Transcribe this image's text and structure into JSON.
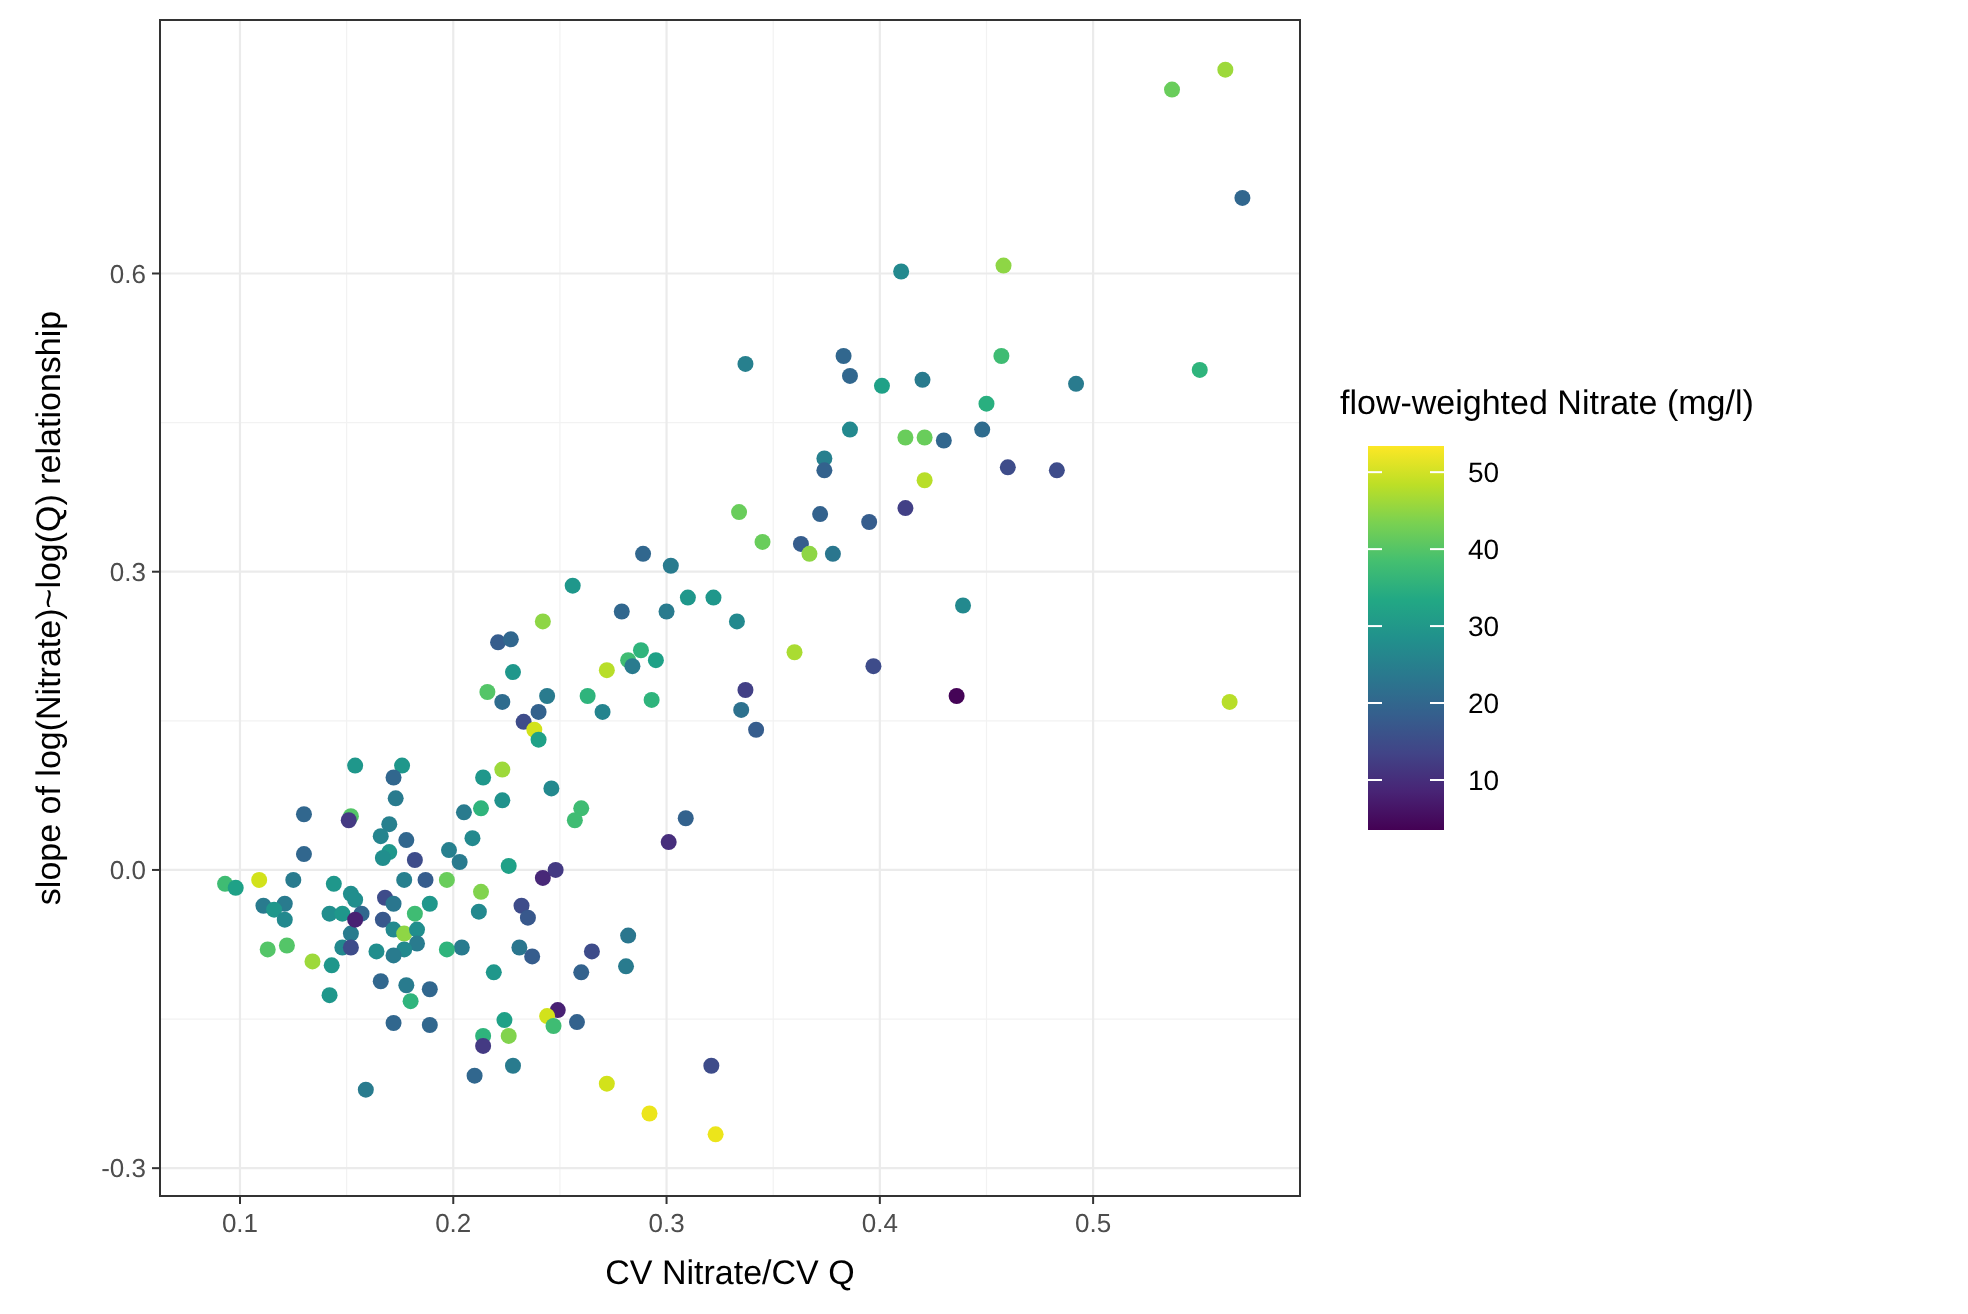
{
  "chart_data": {
    "type": "scatter",
    "xlabel": "CV Nitrate/CV Q",
    "ylabel": "slope of log(Nitrate)~log(Q) relationship",
    "clabel": "flow-weighted Nitrate (mg/l)",
    "xlim": [
      0.0625,
      0.597
    ],
    "ylim": [
      -0.328,
      0.855
    ],
    "xticks": [
      0.1,
      0.2,
      0.3,
      0.4,
      0.5
    ],
    "yticks": [
      -0.3,
      {
        "value": 0,
        "label": "0.0"
      },
      0.3,
      0.6
    ],
    "clim": [
      3.5,
      53.4
    ],
    "cticks": [
      10,
      20,
      30,
      40,
      50
    ],
    "grid": true,
    "marker": "circle",
    "series": [
      {
        "x": [
          0.537,
          0.562,
          0.57,
          0.41,
          0.458,
          0.337,
          0.383,
          0.386,
          0.401,
          0.42,
          0.457,
          0.55,
          0.492,
          0.45,
          0.386,
          0.412,
          0.421,
          0.43,
          0.448,
          0.374,
          0.374,
          0.46,
          0.483,
          0.421,
          0.334,
          0.372,
          0.395,
          0.412,
          0.345,
          0.363,
          0.367,
          0.378,
          0.302,
          0.3,
          0.31,
          0.322,
          0.333,
          0.439,
          0.36,
          0.397,
          0.337,
          0.335,
          0.436,
          0.564,
          0.256,
          0.279,
          0.289,
          0.242,
          0.221,
          0.227,
          0.228,
          0.216,
          0.223,
          0.244,
          0.233,
          0.24,
          0.238,
          0.24,
          0.263,
          0.27,
          0.272,
          0.282,
          0.288,
          0.284,
          0.295,
          0.293,
          0.342,
          0.223,
          0.214,
          0.223,
          0.213,
          0.205,
          0.246,
          0.26,
          0.257,
          0.209,
          0.203,
          0.226,
          0.309,
          0.301,
          0.248,
          0.242,
          0.213,
          0.212,
          0.232,
          0.235,
          0.204,
          0.231,
          0.237,
          0.219,
          0.265,
          0.282,
          0.26,
          0.281,
          0.249,
          0.244,
          0.247,
          0.258,
          0.224,
          0.214,
          0.226,
          0.214,
          0.21,
          0.228,
          0.272,
          0.292,
          0.323,
          0.321,
          0.154,
          0.176,
          0.172,
          0.173,
          0.13,
          0.152,
          0.151,
          0.17,
          0.166,
          0.178,
          0.17,
          0.167,
          0.182,
          0.13,
          0.198,
          0.197,
          0.187,
          0.177,
          0.125,
          0.109,
          0.093,
          0.098,
          0.144,
          0.152,
          0.154,
          0.168,
          0.172,
          0.189,
          0.111,
          0.121,
          0.116,
          0.121,
          0.142,
          0.148,
          0.157,
          0.182,
          0.167,
          0.152,
          0.154,
          0.172,
          0.177,
          0.183,
          0.183,
          0.177,
          0.172,
          0.164,
          0.148,
          0.152,
          0.113,
          0.122,
          0.197,
          0.134,
          0.143,
          0.166,
          0.178,
          0.189,
          0.18,
          0.142,
          0.172,
          0.189,
          0.159
        ],
        "values": [
          0.785,
          0.805,
          0.676,
          0.602,
          0.608,
          0.509,
          0.517,
          0.497,
          0.487,
          0.493,
          0.517,
          0.503,
          0.489,
          0.469,
          0.443,
          0.435,
          0.435,
          0.432,
          0.443,
          0.414,
          0.402,
          0.405,
          0.402,
          0.392,
          0.36,
          0.358,
          0.35,
          0.364,
          0.33,
          0.328,
          0.318,
          0.318,
          0.306,
          0.26,
          0.274,
          0.274,
          0.25,
          0.266,
          0.219,
          0.205,
          0.181,
          0.161,
          0.175,
          0.169,
          0.286,
          0.26,
          0.318,
          0.25,
          0.229,
          0.232,
          0.199,
          0.179,
          0.169,
          0.175,
          0.149,
          0.159,
          0.141,
          0.131,
          0.175,
          0.159,
          0.201,
          0.211,
          0.221,
          0.205,
          0.211,
          0.171,
          0.141,
          0.101,
          0.093,
          0.07,
          0.062,
          0.058,
          0.082,
          0.062,
          0.05,
          0.032,
          0.008,
          0.004,
          0.052,
          0.028,
          0.0,
          -0.008,
          -0.022,
          -0.042,
          -0.036,
          -0.048,
          -0.078,
          -0.078,
          -0.087,
          -0.103,
          -0.082,
          -0.066,
          -0.103,
          -0.097,
          -0.141,
          -0.147,
          -0.157,
          -0.153,
          -0.151,
          -0.167,
          -0.167,
          -0.177,
          -0.207,
          -0.197,
          -0.215,
          -0.245,
          -0.266,
          -0.197,
          0.105,
          0.105,
          0.093,
          0.072,
          0.056,
          0.054,
          0.05,
          0.046,
          0.034,
          0.03,
          0.018,
          0.012,
          0.01,
          0.016,
          0.02,
          -0.01,
          -0.01,
          -0.01,
          -0.01,
          -0.01,
          -0.014,
          -0.018,
          -0.014,
          -0.024,
          -0.03,
          -0.028,
          -0.034,
          -0.034,
          -0.036,
          -0.034,
          -0.04,
          -0.05,
          -0.044,
          -0.044,
          -0.044,
          -0.044,
          -0.05,
          -0.064,
          -0.05,
          -0.06,
          -0.064,
          -0.06,
          -0.074,
          -0.08,
          -0.086,
          -0.082,
          -0.078,
          -0.078,
          -0.08,
          -0.076,
          -0.08,
          -0.092,
          -0.096,
          -0.112,
          -0.116,
          -0.12,
          -0.132,
          -0.126,
          -0.154,
          -0.156,
          -0.221
        ],
        "cvalues": [
          42,
          46,
          20,
          27,
          45,
          25,
          20,
          20,
          32,
          24,
          38,
          36,
          24,
          35,
          27,
          42,
          42,
          20,
          21,
          25,
          19,
          15,
          15,
          48,
          42,
          19,
          18,
          13,
          42,
          18,
          45,
          23,
          24,
          24,
          30,
          30,
          27,
          27,
          47,
          15,
          13,
          22,
          4,
          48,
          30,
          20,
          20,
          45,
          18,
          20,
          30,
          40,
          21,
          24,
          15,
          19,
          50,
          32,
          36,
          26,
          48,
          38,
          36,
          24,
          32,
          36,
          18,
          46,
          30,
          29,
          36,
          24,
          27,
          38,
          38,
          27,
          24,
          32,
          19,
          10,
          12,
          9,
          44,
          27,
          15,
          17,
          24,
          23,
          18,
          30,
          15,
          23,
          19,
          24,
          8,
          50,
          38,
          19,
          32,
          36,
          44,
          12,
          20,
          24,
          50,
          52,
          52,
          15,
          30,
          30,
          20,
          24,
          20,
          40,
          12,
          25,
          26,
          20,
          30,
          28,
          15,
          20,
          25,
          42,
          18,
          25,
          24,
          50,
          38,
          32,
          30,
          28,
          28,
          15,
          23,
          30,
          24,
          24,
          30,
          27,
          28,
          30,
          20,
          38,
          17,
          24,
          8,
          27,
          45,
          28,
          24,
          27,
          24,
          28,
          27,
          15,
          40,
          40,
          36,
          46,
          30,
          20,
          24,
          20,
          36,
          30,
          20,
          20,
          24
        ]
      }
    ]
  }
}
